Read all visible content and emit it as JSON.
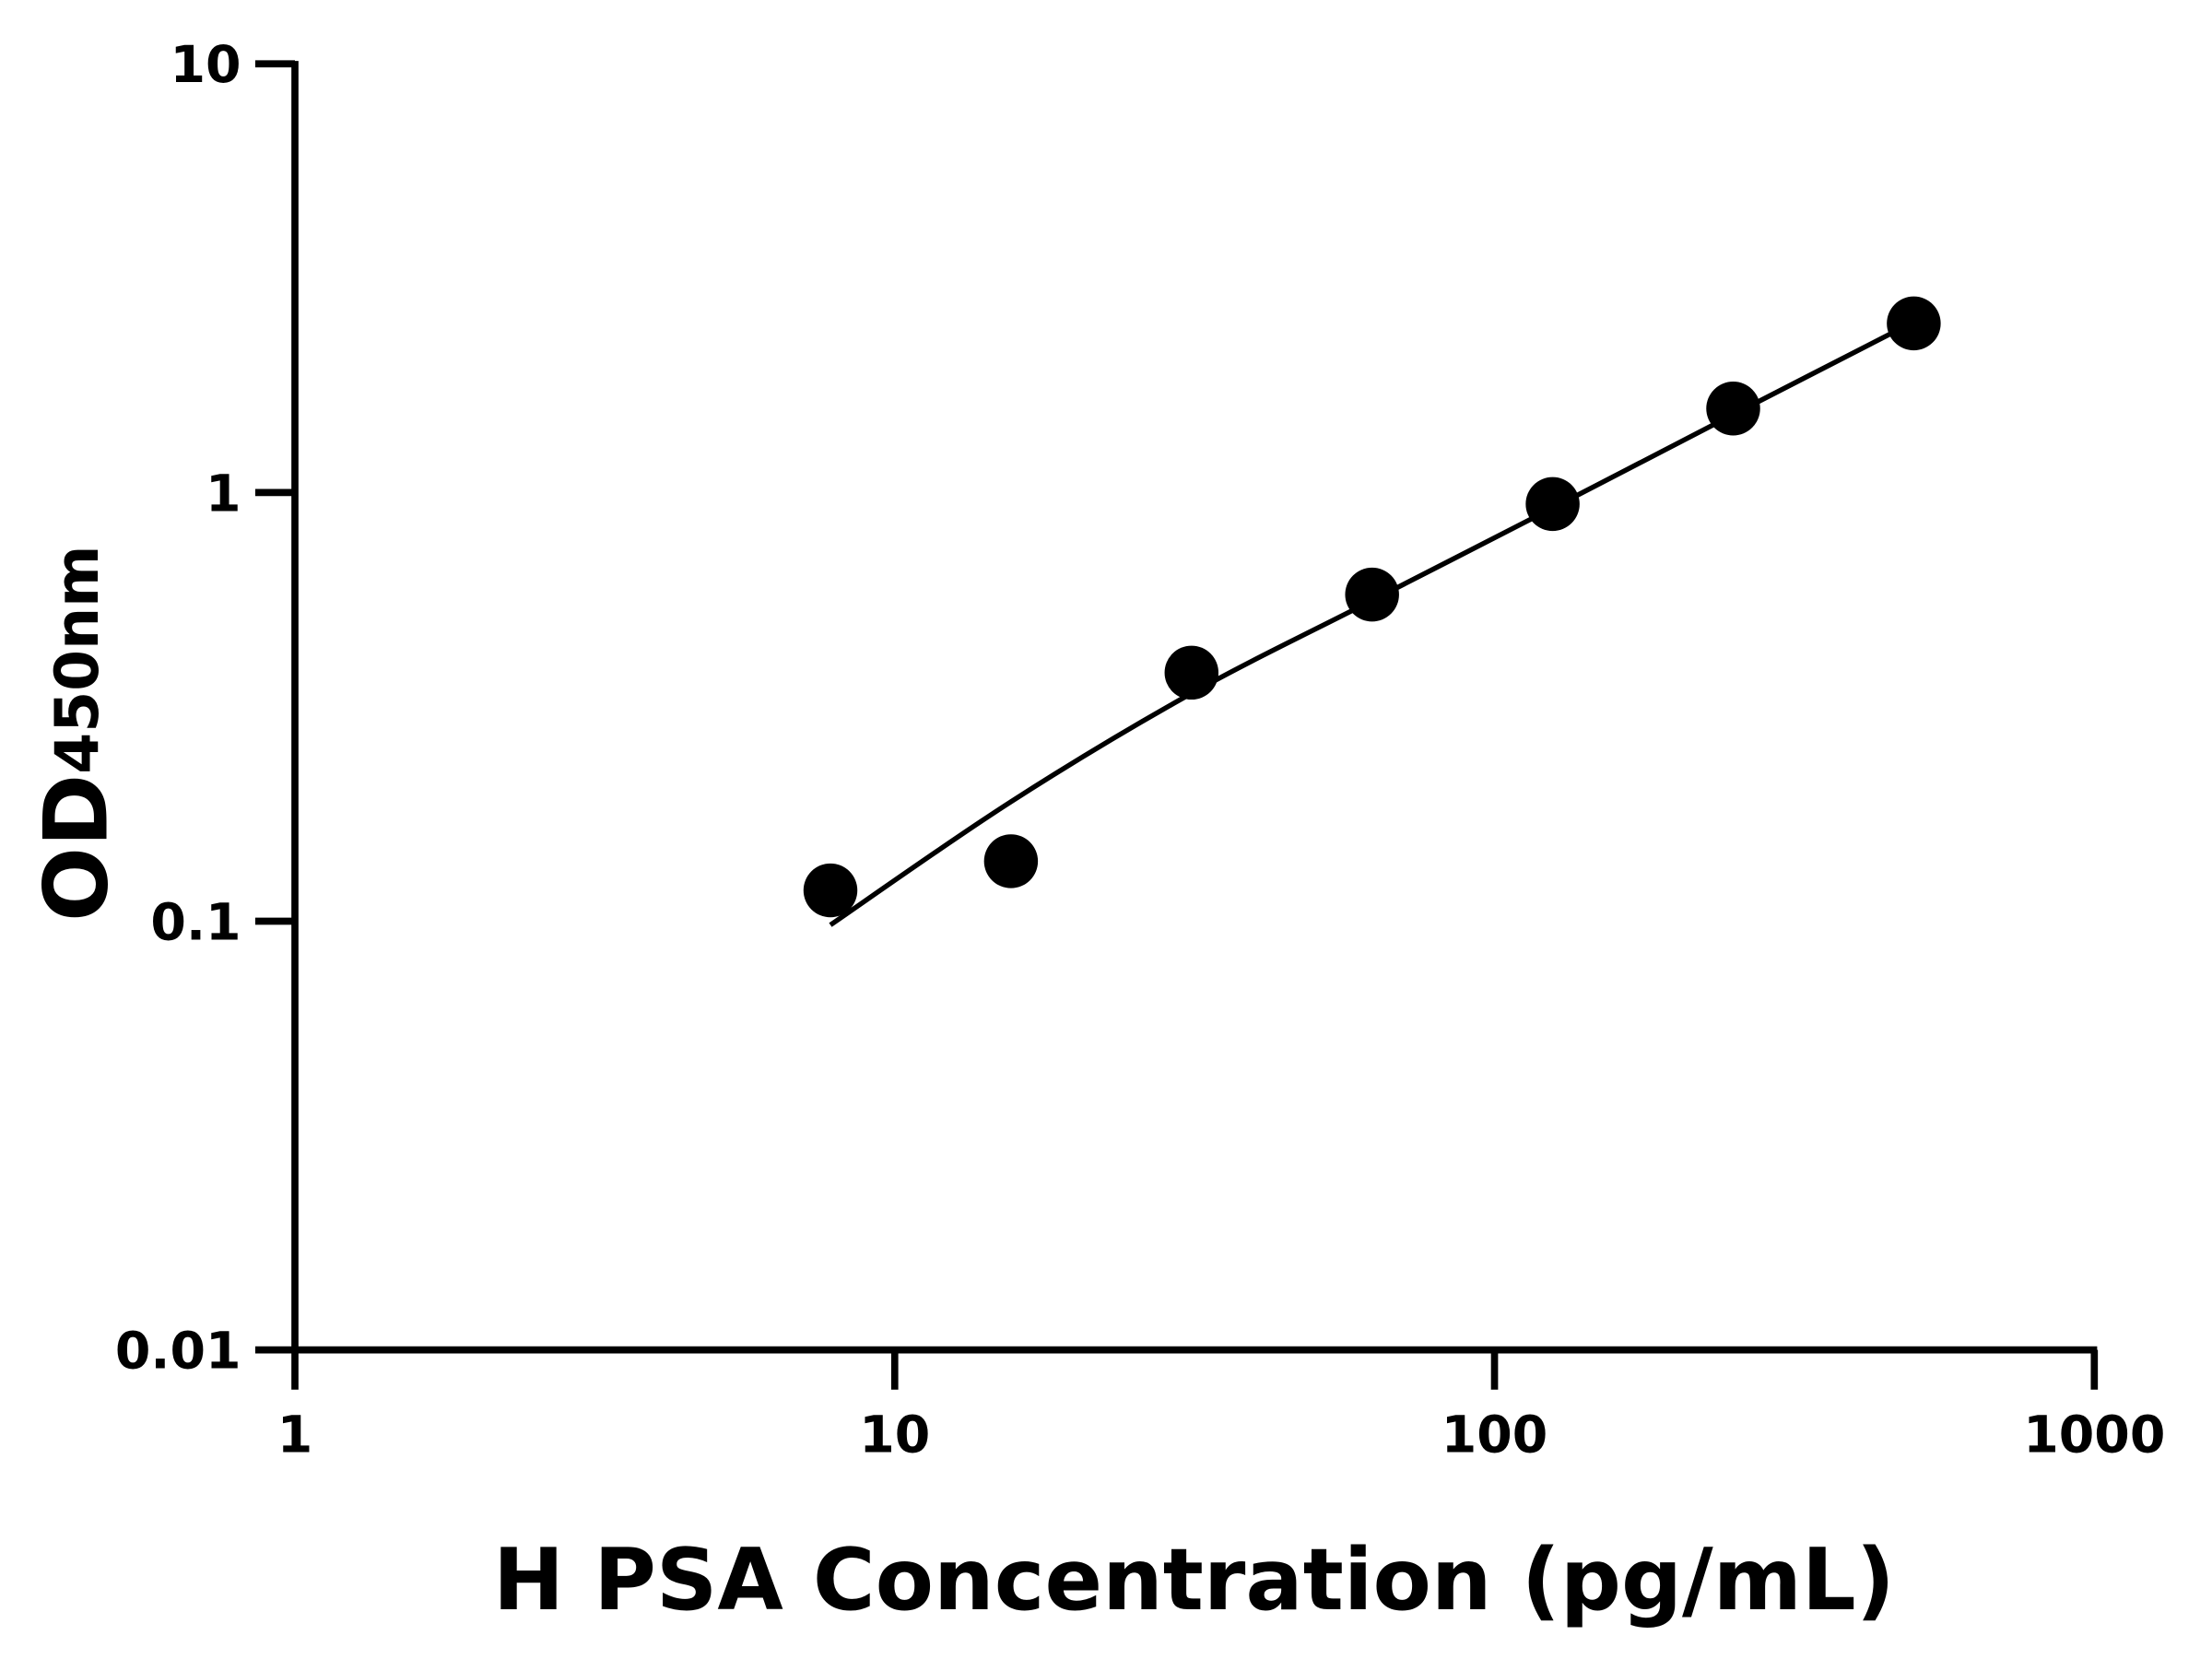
{
  "chart_data": {
    "type": "scatter",
    "title": "",
    "xlabel": "H PSA Concentration (pg/mL)",
    "ylabel": "OD",
    "ylabel_subscript": "450nm",
    "x_scale": "log",
    "y_scale": "log",
    "xlim": [
      1,
      1000
    ],
    "ylim": [
      0.01,
      10
    ],
    "x_ticks": [
      1,
      10,
      100,
      1000
    ],
    "x_tick_labels": [
      "1",
      "10",
      "100",
      "1000"
    ],
    "y_ticks": [
      0.01,
      0.1,
      1,
      10
    ],
    "y_tick_labels": [
      "0.01",
      "0.1",
      "1",
      "10"
    ],
    "grid": false,
    "legend": "none",
    "colors": {
      "points": "#000000",
      "curve": "#000000",
      "axes": "#000000"
    },
    "points": {
      "x": [
        7.8125,
        15.625,
        31.25,
        62.5,
        125,
        250,
        500
      ],
      "y": [
        0.118,
        0.138,
        0.38,
        0.578,
        0.94,
        1.57,
        2.48
      ]
    },
    "fit_curve": {
      "x": [
        7.8125,
        15.625,
        31.25,
        62.5,
        125,
        250,
        500
      ],
      "y": [
        0.098,
        0.19,
        0.34,
        0.56,
        0.92,
        1.52,
        2.5
      ]
    }
  }
}
